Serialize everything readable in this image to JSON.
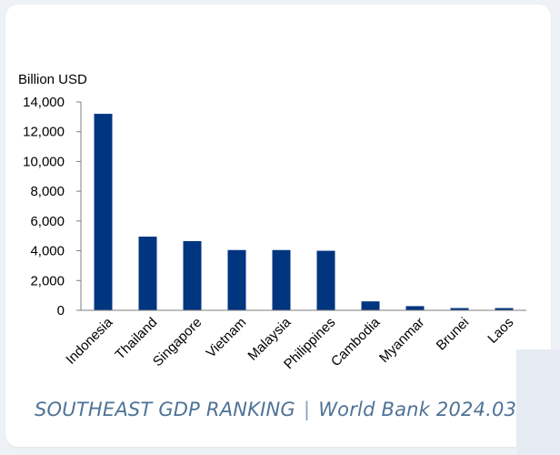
{
  "caption": {
    "title": "SOUTHEAST GDP RANKING",
    "separator": "|",
    "source": "World Bank 2024.03"
  },
  "colors": {
    "bar": "#003580",
    "axis": "#7f7f7f",
    "caption": "#4f7396"
  },
  "chart_data": {
    "type": "bar",
    "ylabel": "Billion USD",
    "xlabel": "",
    "ylim": [
      0,
      14000
    ],
    "yticks": [
      0,
      2000,
      4000,
      6000,
      8000,
      10000,
      12000,
      14000
    ],
    "ytick_labels": [
      "0",
      "2,000",
      "4,000",
      "6,000",
      "8,000",
      "10,000",
      "12,000",
      "14,000"
    ],
    "grid": false,
    "categories": [
      "Indonesia",
      "Thailand",
      "Singapore",
      "Vietnam",
      "Malaysia",
      "Philippines",
      "Cambodia",
      "Myanmar",
      "Brunei",
      "Laos"
    ],
    "values": [
      13200,
      4950,
      4650,
      4050,
      4050,
      4000,
      600,
      280,
      150,
      150
    ]
  }
}
